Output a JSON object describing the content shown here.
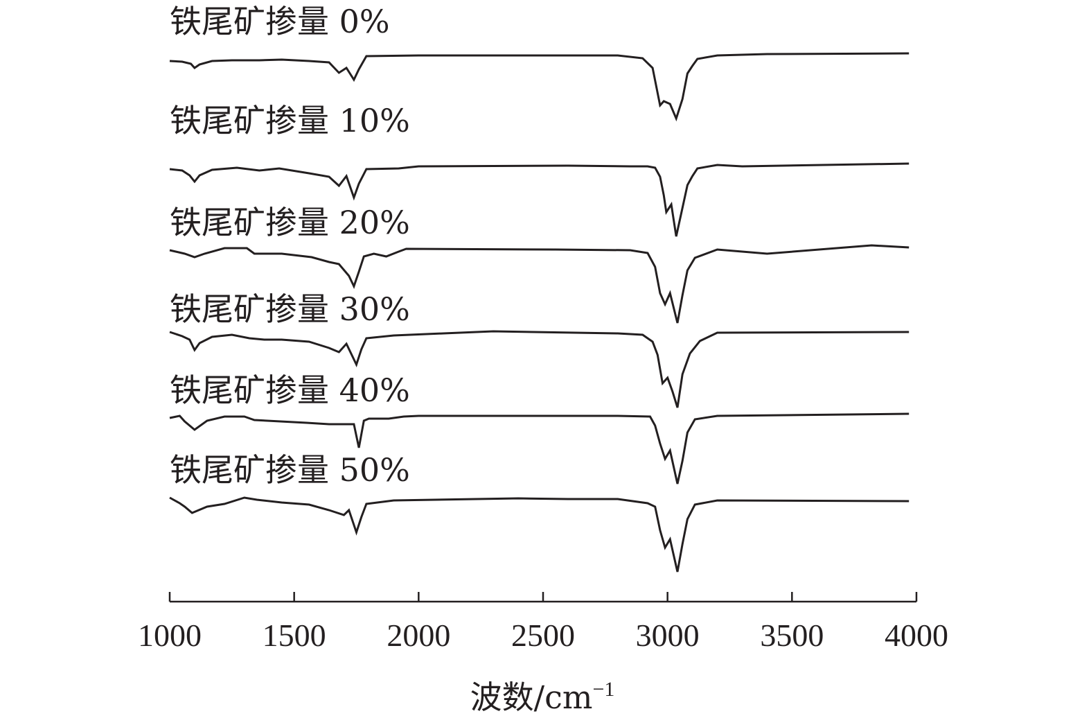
{
  "chart_data": {
    "type": "line",
    "xlabel": "波数/cm",
    "xlabel_sup": "−1",
    "xlim": [
      1000,
      4000
    ],
    "xticks": [
      1000,
      1500,
      2000,
      2500,
      3000,
      3500,
      4000
    ],
    "xtick_labels": [
      "1000",
      "1500",
      "2000",
      "2500",
      "3000",
      "3500",
      "4000"
    ],
    "ylabel": "",
    "y_axis_shown": false,
    "grid": false,
    "legend": "none (labels placed above each stacked curve)",
    "series": [
      {
        "name": "铁尾矿掺量 0%",
        "points": [
          [
            1000,
            88
          ],
          [
            1050,
            89
          ],
          [
            1085,
            92
          ],
          [
            1100,
            98
          ],
          [
            1120,
            93
          ],
          [
            1170,
            88
          ],
          [
            1250,
            87
          ],
          [
            1360,
            87
          ],
          [
            1450,
            86
          ],
          [
            1560,
            88
          ],
          [
            1640,
            90
          ],
          [
            1680,
            105
          ],
          [
            1710,
            98
          ],
          [
            1740,
            115
          ],
          [
            1760,
            100
          ],
          [
            1790,
            81
          ],
          [
            2000,
            80
          ],
          [
            2800,
            80
          ],
          [
            2900,
            84
          ],
          [
            2940,
            98
          ],
          [
            2970,
            152
          ],
          [
            2985,
            146
          ],
          [
            3010,
            150
          ],
          [
            3035,
            171
          ],
          [
            3060,
            143
          ],
          [
            3080,
            106
          ],
          [
            3100,
            95
          ],
          [
            3120,
            85
          ],
          [
            3200,
            80
          ],
          [
            3400,
            78
          ],
          [
            3970,
            77
          ]
        ]
      },
      {
        "name": "铁尾矿掺量 10%",
        "points": [
          [
            1000,
            244
          ],
          [
            1050,
            246
          ],
          [
            1080,
            253
          ],
          [
            1100,
            262
          ],
          [
            1120,
            253
          ],
          [
            1170,
            245
          ],
          [
            1270,
            242
          ],
          [
            1360,
            246
          ],
          [
            1440,
            243
          ],
          [
            1560,
            250
          ],
          [
            1640,
            255
          ],
          [
            1680,
            268
          ],
          [
            1710,
            254
          ],
          [
            1740,
            285
          ],
          [
            1760,
            265
          ],
          [
            1790,
            244
          ],
          [
            1920,
            243
          ],
          [
            2000,
            240
          ],
          [
            2600,
            239
          ],
          [
            2850,
            240
          ],
          [
            2920,
            240
          ],
          [
            2950,
            242
          ],
          [
            2970,
            255
          ],
          [
            2985,
            282
          ],
          [
            2995,
            306
          ],
          [
            3015,
            295
          ],
          [
            3035,
            341
          ],
          [
            3060,
            300
          ],
          [
            3080,
            267
          ],
          [
            3100,
            254
          ],
          [
            3120,
            243
          ],
          [
            3200,
            238
          ],
          [
            3300,
            240
          ],
          [
            3970,
            236
          ]
        ]
      },
      {
        "name": "铁尾矿掺量 20%",
        "points": [
          [
            1000,
            361
          ],
          [
            1060,
            366
          ],
          [
            1100,
            371
          ],
          [
            1140,
            366
          ],
          [
            1220,
            358
          ],
          [
            1310,
            358
          ],
          [
            1340,
            366
          ],
          [
            1450,
            366
          ],
          [
            1570,
            371
          ],
          [
            1640,
            378
          ],
          [
            1680,
            381
          ],
          [
            1720,
            398
          ],
          [
            1740,
            413
          ],
          [
            1760,
            392
          ],
          [
            1780,
            370
          ],
          [
            1820,
            366
          ],
          [
            1870,
            370
          ],
          [
            1920,
            363
          ],
          [
            1950,
            359
          ],
          [
            2550,
            360
          ],
          [
            2850,
            361
          ],
          [
            2920,
            365
          ],
          [
            2950,
            385
          ],
          [
            2970,
            423
          ],
          [
            2990,
            439
          ],
          [
            3010,
            423
          ],
          [
            3040,
            466
          ],
          [
            3060,
            426
          ],
          [
            3080,
            390
          ],
          [
            3110,
            372
          ],
          [
            3200,
            360
          ],
          [
            3400,
            366
          ],
          [
            3820,
            354
          ],
          [
            3970,
            357
          ]
        ]
      },
      {
        "name": "铁尾矿掺量 30%",
        "points": [
          [
            1000,
            479
          ],
          [
            1050,
            485
          ],
          [
            1080,
            490
          ],
          [
            1100,
            505
          ],
          [
            1120,
            495
          ],
          [
            1170,
            486
          ],
          [
            1250,
            483
          ],
          [
            1320,
            488
          ],
          [
            1380,
            490
          ],
          [
            1450,
            490
          ],
          [
            1560,
            493
          ],
          [
            1640,
            502
          ],
          [
            1680,
            508
          ],
          [
            1710,
            496
          ],
          [
            1750,
            526
          ],
          [
            1770,
            504
          ],
          [
            1790,
            488
          ],
          [
            1900,
            484
          ],
          [
            2100,
            481
          ],
          [
            2300,
            478
          ],
          [
            2800,
            481
          ],
          [
            2900,
            483
          ],
          [
            2940,
            493
          ],
          [
            2960,
            512
          ],
          [
            2980,
            553
          ],
          [
            3000,
            545
          ],
          [
            3020,
            565
          ],
          [
            3040,
            588
          ],
          [
            3060,
            540
          ],
          [
            3090,
            510
          ],
          [
            3130,
            492
          ],
          [
            3200,
            480
          ],
          [
            3970,
            479
          ]
        ]
      },
      {
        "name": "铁尾矿掺量 40%",
        "points": [
          [
            1000,
            603
          ],
          [
            1040,
            600
          ],
          [
            1060,
            608
          ],
          [
            1100,
            620
          ],
          [
            1150,
            607
          ],
          [
            1220,
            601
          ],
          [
            1300,
            601
          ],
          [
            1340,
            606
          ],
          [
            1550,
            610
          ],
          [
            1640,
            612
          ],
          [
            1740,
            612
          ],
          [
            1760,
            646
          ],
          [
            1780,
            607
          ],
          [
            1800,
            604
          ],
          [
            1880,
            604
          ],
          [
            1940,
            601
          ],
          [
            2000,
            600
          ],
          [
            2300,
            600
          ],
          [
            2800,
            600
          ],
          [
            2930,
            601
          ],
          [
            2950,
            614
          ],
          [
            2970,
            640
          ],
          [
            2990,
            662
          ],
          [
            3010,
            650
          ],
          [
            3040,
            698
          ],
          [
            3060,
            665
          ],
          [
            3080,
            624
          ],
          [
            3110,
            605
          ],
          [
            3200,
            600
          ],
          [
            3970,
            597
          ]
        ]
      },
      {
        "name": "铁尾矿掺量 50%",
        "points": [
          [
            1000,
            718
          ],
          [
            1040,
            726
          ],
          [
            1060,
            731
          ],
          [
            1090,
            740
          ],
          [
            1150,
            731
          ],
          [
            1220,
            727
          ],
          [
            1300,
            718
          ],
          [
            1350,
            721
          ],
          [
            1450,
            725
          ],
          [
            1560,
            728
          ],
          [
            1640,
            736
          ],
          [
            1700,
            743
          ],
          [
            1720,
            736
          ],
          [
            1750,
            768
          ],
          [
            1770,
            746
          ],
          [
            1790,
            727
          ],
          [
            1900,
            722
          ],
          [
            2400,
            719
          ],
          [
            2600,
            720
          ],
          [
            2800,
            720
          ],
          [
            2920,
            726
          ],
          [
            2950,
            731
          ],
          [
            2970,
            765
          ],
          [
            2990,
            790
          ],
          [
            3010,
            778
          ],
          [
            3040,
            825
          ],
          [
            3060,
            785
          ],
          [
            3080,
            749
          ],
          [
            3110,
            728
          ],
          [
            3200,
            722
          ],
          [
            3970,
            723
          ]
        ]
      }
    ]
  }
}
